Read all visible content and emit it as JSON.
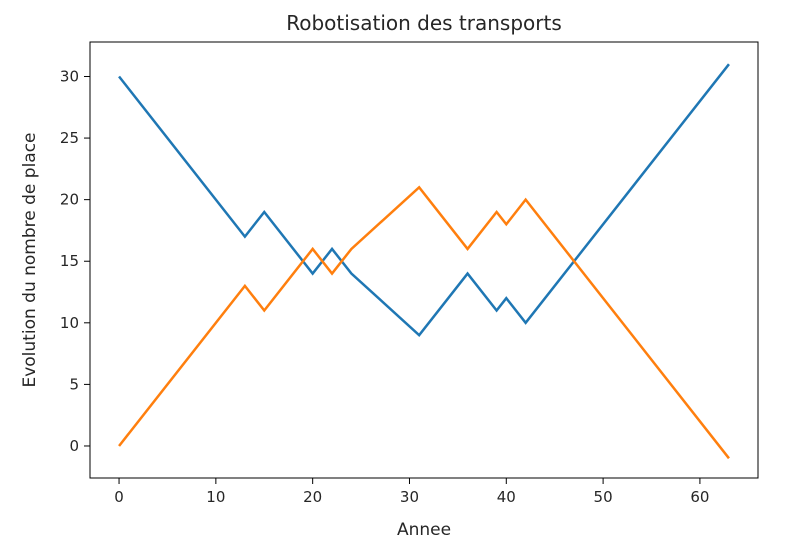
{
  "chart_data": {
    "type": "line",
    "title": "Robotisation des transports",
    "xlabel": "Annee",
    "ylabel": "Evolution du nombre de place",
    "xlim": [
      -3,
      66
    ],
    "ylim": [
      -2.6,
      32.8
    ],
    "xticks": [
      0,
      10,
      20,
      30,
      40,
      50,
      60
    ],
    "yticks": [
      0,
      5,
      10,
      15,
      20,
      25,
      30
    ],
    "grid": false,
    "legend": "none",
    "series": [
      {
        "color": "#1f77b4",
        "points": [
          [
            0,
            30
          ],
          [
            13,
            17
          ],
          [
            15,
            19
          ],
          [
            20,
            14
          ],
          [
            22,
            16
          ],
          [
            24,
            14
          ],
          [
            31,
            9
          ],
          [
            36,
            14
          ],
          [
            39,
            11
          ],
          [
            40,
            12
          ],
          [
            42,
            10
          ],
          [
            63,
            31
          ]
        ]
      },
      {
        "color": "#ff7f0e",
        "points": [
          [
            0,
            0
          ],
          [
            13,
            13
          ],
          [
            15,
            11
          ],
          [
            20,
            16
          ],
          [
            22,
            14
          ],
          [
            24,
            16
          ],
          [
            31,
            21
          ],
          [
            36,
            16
          ],
          [
            39,
            19
          ],
          [
            40,
            18
          ],
          [
            42,
            20
          ],
          [
            63,
            -1
          ]
        ]
      }
    ]
  }
}
